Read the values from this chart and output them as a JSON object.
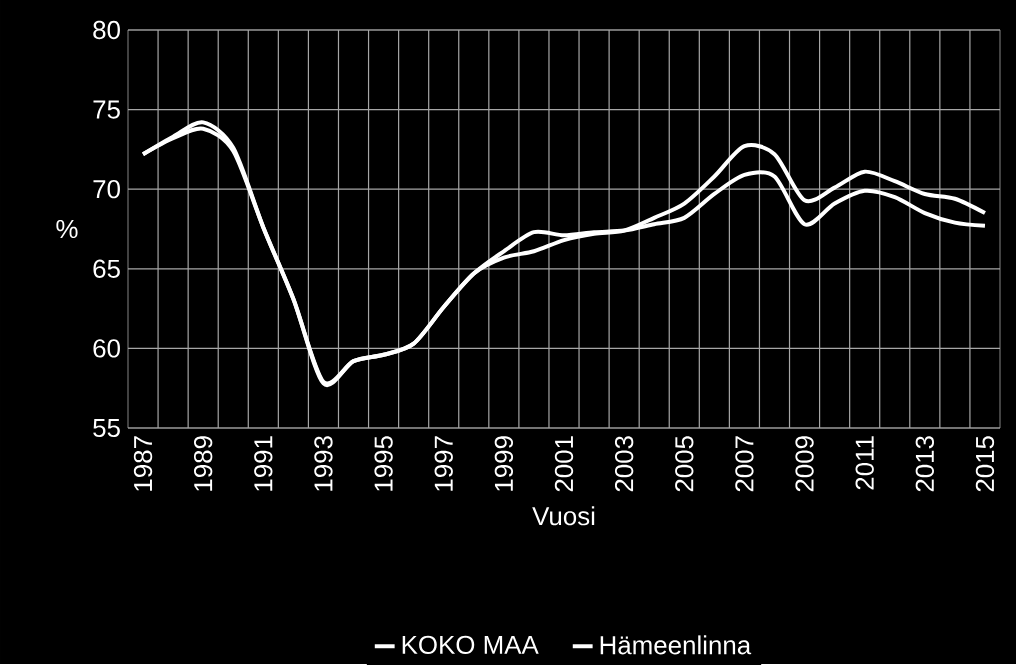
{
  "chart_data": {
    "type": "line",
    "xlabel": "Vuosi",
    "ylabel": "%",
    "categories": [
      "1987",
      null,
      "1989",
      null,
      "1991",
      null,
      "1993",
      null,
      "1995",
      null,
      "1997",
      null,
      "1999",
      null,
      "2001",
      null,
      "2003",
      null,
      "2005",
      null,
      "2007",
      null,
      "2009",
      null,
      "2011",
      null,
      "2013",
      null,
      "2015"
    ],
    "series": [
      {
        "name": "KOKO MAA",
        "color": "#ffffff",
        "values": [
          72.2,
          73.3,
          74.2,
          72.6,
          67.6,
          63.1,
          57.8,
          59.2,
          59.6,
          60.3,
          62.6,
          64.7,
          65.7,
          66.1,
          66.8,
          67.2,
          67.4,
          68.2,
          69.1,
          70.8,
          72.7,
          72.2,
          69.3,
          70.1,
          71.1,
          70.5,
          69.7,
          69.4,
          68.5
        ]
      },
      {
        "name": "Hämeenlinna",
        "color": "#ffffff",
        "values": [
          72.2,
          73.2,
          73.8,
          72.4,
          67.6,
          63.1,
          57.9,
          59.2,
          59.6,
          60.3,
          62.6,
          64.7,
          66.1,
          67.3,
          67.1,
          67.3,
          67.4,
          67.8,
          68.2,
          69.7,
          70.9,
          70.8,
          67.8,
          69.1,
          69.9,
          69.5,
          68.5,
          67.9,
          67.7
        ]
      }
    ],
    "ylim": [
      55,
      80
    ],
    "yticks": [
      55,
      60,
      65,
      70,
      75,
      80
    ],
    "grid": true,
    "legend": "bottom",
    "marker": "none",
    "line_style": "solid"
  }
}
